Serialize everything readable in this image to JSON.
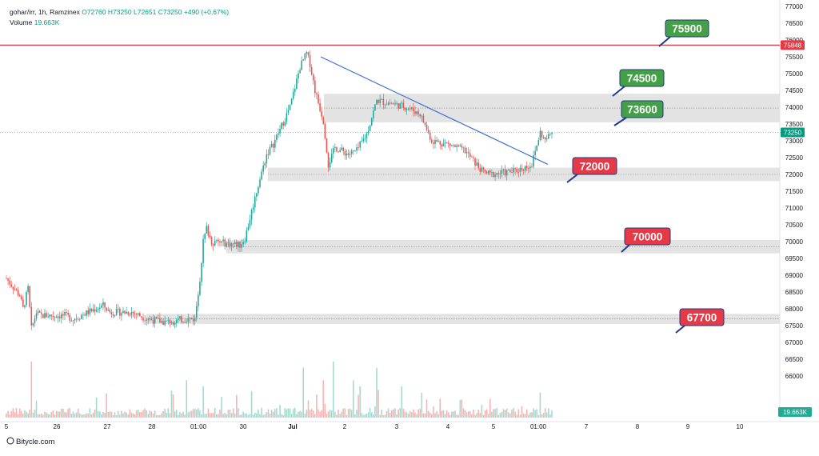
{
  "header": {
    "symbol": "gohar/irr, 1h, Ramzinex",
    "ohlc_label": "O72760 H73250 L72651 C73250",
    "change": "+490 (+0.67%)",
    "volume_label": "Volume",
    "volume_value": "19.663K"
  },
  "brand": "Bitycle.com",
  "colors": {
    "up": "#26a69a",
    "down": "#ef5350",
    "up_vol": "#a7d9cf",
    "down_vol": "#f5b5b3",
    "trendline": "#3c6fd6",
    "resistance": "#e53946",
    "zone": "#e3e3e3",
    "green_label": "#43a047",
    "red_label": "#e53946"
  },
  "chart_data": {
    "type": "candlestick",
    "ylim": [
      65500,
      77000
    ],
    "y_ticks": [
      "77000",
      "76500",
      "76000",
      "75500",
      "75000",
      "74500",
      "74000",
      "73500",
      "73000",
      "72500",
      "72000",
      "71500",
      "71000",
      "70500",
      "70000",
      "69500",
      "69000",
      "68500",
      "68000",
      "67500",
      "67000",
      "66500",
      "66000"
    ],
    "x_ticks": [
      "5",
      "26",
      "27",
      "28",
      "01:00",
      "30",
      "Jul",
      "2",
      "3",
      "4",
      "5",
      "01:00",
      "7",
      "8",
      "9",
      "10"
    ],
    "resistance_line": {
      "value": 75848,
      "label": "75848"
    },
    "last_price": {
      "value": 73250,
      "label": "73250"
    },
    "volume_last": "19.663K",
    "zones": [
      {
        "from": 73550,
        "to": 74400
      },
      {
        "from": 71800,
        "to": 72200
      },
      {
        "from": 69650,
        "to": 70050
      },
      {
        "from": 67550,
        "to": 67850
      }
    ],
    "level_labels": [
      {
        "text": "75900",
        "color": "green"
      },
      {
        "text": "74500",
        "color": "green"
      },
      {
        "text": "73600",
        "color": "green"
      },
      {
        "text": "72000",
        "color": "red"
      },
      {
        "text": "70000",
        "color": "red"
      },
      {
        "text": "67700",
        "color": "red"
      }
    ],
    "trendline": {
      "from": 75500,
      "to": 72300
    },
    "price_path": [
      [
        0,
        68900
      ],
      [
        8,
        68400
      ],
      [
        10,
        68000
      ],
      [
        13,
        68600
      ],
      [
        15,
        67400
      ],
      [
        18,
        67900
      ],
      [
        20,
        67800
      ],
      [
        35,
        67800
      ],
      [
        40,
        67700
      ],
      [
        58,
        68100
      ],
      [
        62,
        67900
      ],
      [
        75,
        67900
      ],
      [
        85,
        67700
      ],
      [
        95,
        67600
      ],
      [
        108,
        67700
      ],
      [
        113,
        67700
      ],
      [
        116,
        68900
      ],
      [
        118,
        70000
      ],
      [
        120,
        70400
      ],
      [
        123,
        70000
      ],
      [
        140,
        69900
      ],
      [
        143,
        70100
      ],
      [
        150,
        71500
      ],
      [
        156,
        72600
      ],
      [
        160,
        72900
      ],
      [
        170,
        74000
      ],
      [
        176,
        75200
      ],
      [
        180,
        75600
      ],
      [
        182,
        75300
      ],
      [
        185,
        74500
      ],
      [
        190,
        73600
      ],
      [
        193,
        72300
      ],
      [
        197,
        72800
      ],
      [
        205,
        72600
      ],
      [
        210,
        72700
      ],
      [
        216,
        73200
      ],
      [
        222,
        74200
      ],
      [
        232,
        74100
      ],
      [
        240,
        74000
      ],
      [
        248,
        73800
      ],
      [
        255,
        73000
      ],
      [
        265,
        72900
      ],
      [
        275,
        72700
      ],
      [
        280,
        72400
      ],
      [
        285,
        72100
      ],
      [
        290,
        72000
      ],
      [
        305,
        72100
      ],
      [
        315,
        72300
      ],
      [
        320,
        73250
      ],
      [
        323,
        73000
      ],
      [
        327,
        73250
      ]
    ],
    "vol_spikes": [
      [
        15,
        0.9
      ],
      [
        108,
        0.6
      ],
      [
        114,
        1.0
      ],
      [
        118,
        0.5
      ],
      [
        153,
        0.6
      ],
      [
        178,
        0.8
      ],
      [
        190,
        0.6
      ],
      [
        196,
        0.9
      ],
      [
        208,
        0.6
      ],
      [
        212,
        0.5
      ],
      [
        222,
        0.8
      ],
      [
        237,
        0.5
      ],
      [
        249,
        0.4
      ],
      [
        290,
        0.3
      ],
      [
        320,
        0.4
      ]
    ]
  }
}
